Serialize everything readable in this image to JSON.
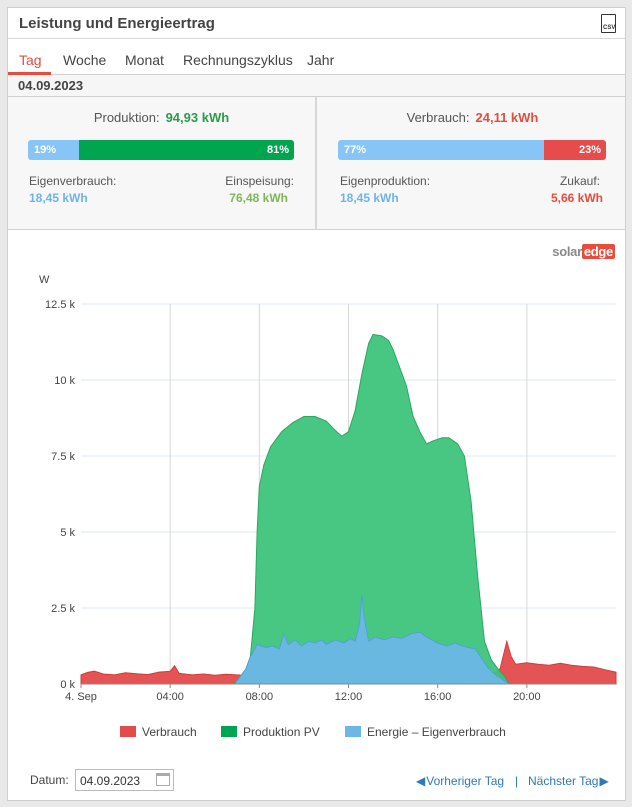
{
  "header": {
    "title": "Leistung und Energieertrag",
    "csv_label": "CSV"
  },
  "tabs": [
    {
      "label": "Tag",
      "active": true
    },
    {
      "label": "Woche",
      "active": false
    },
    {
      "label": "Monat",
      "active": false
    },
    {
      "label": "Rechnungszyklus",
      "active": false
    },
    {
      "label": "Jahr",
      "active": false
    }
  ],
  "date_heading": "04.09.2023",
  "production": {
    "label": "Produktion:",
    "value": "94,93 kWh",
    "left_pct": 19,
    "right_pct": 81,
    "left_pct_label": "19%",
    "right_pct_label": "81%",
    "left_label": "Eigenverbrauch:",
    "left_value": "18,45 kWh",
    "right_label": "Einspeisung:",
    "right_value": "76,48 kWh"
  },
  "consumption": {
    "label": "Verbrauch:",
    "value": "24,11 kWh",
    "left_pct": 77,
    "right_pct": 23,
    "left_pct_label": "77%",
    "right_pct_label": "23%",
    "left_label": "Eigenproduktion:",
    "left_value": "18,45 kWh",
    "right_label": "Zukauf:",
    "right_value": "5,66 kWh"
  },
  "colors": {
    "accent": "#e74c3c",
    "green": "#00a64f",
    "light_blue": "#86c5f5",
    "red": "#e74c4c",
    "green_text": "#2e9b4c",
    "red_text": "#e74c3c",
    "blue_text": "#6fb4e8",
    "light_green_text": "#7cb85a"
  },
  "logo": {
    "part1": "solar",
    "part2": "edge"
  },
  "chart_data": {
    "type": "area",
    "ylabel": "W",
    "ylim": [
      0,
      12500
    ],
    "yticks": [
      0,
      2500,
      5000,
      7500,
      10000,
      12500
    ],
    "ytick_labels": [
      "0 k",
      "2.5 k",
      "5 k",
      "7.5 k",
      "10 k",
      "12.5 k"
    ],
    "xlim": [
      0,
      24
    ],
    "xticks": [
      0,
      4,
      8,
      12,
      16,
      20
    ],
    "xtick_labels": [
      "4. Sep",
      "04:00",
      "08:00",
      "12:00",
      "16:00",
      "20:00"
    ],
    "grid": true,
    "legend_position": "bottom",
    "series": [
      {
        "name": "Verbrauch",
        "color": "#e34b4b",
        "points": [
          [
            0,
            300
          ],
          [
            0.3,
            380
          ],
          [
            0.6,
            420
          ],
          [
            1,
            330
          ],
          [
            1.5,
            300
          ],
          [
            2,
            370
          ],
          [
            2.5,
            340
          ],
          [
            3,
            310
          ],
          [
            3.5,
            390
          ],
          [
            4,
            420
          ],
          [
            4.2,
            600
          ],
          [
            4.4,
            350
          ],
          [
            5,
            300
          ],
          [
            5.5,
            330
          ],
          [
            6,
            290
          ],
          [
            6.5,
            320
          ],
          [
            7,
            300
          ],
          [
            7.5,
            280
          ],
          [
            8,
            280
          ],
          [
            9,
            250
          ],
          [
            10,
            250
          ],
          [
            11,
            250
          ],
          [
            12,
            250
          ],
          [
            13,
            250
          ],
          [
            14,
            250
          ],
          [
            15,
            250
          ],
          [
            16,
            250
          ],
          [
            17,
            250
          ],
          [
            18,
            280
          ],
          [
            18.5,
            330
          ],
          [
            18.8,
            500
          ],
          [
            19.1,
            1400
          ],
          [
            19.3,
            900
          ],
          [
            19.5,
            650
          ],
          [
            20,
            700
          ],
          [
            20.5,
            650
          ],
          [
            21,
            620
          ],
          [
            21.5,
            680
          ],
          [
            22,
            620
          ],
          [
            22.5,
            580
          ],
          [
            23,
            560
          ],
          [
            23.5,
            470
          ],
          [
            24,
            390
          ]
        ]
      },
      {
        "name": "Produktion PV",
        "color": "#3ec47b",
        "points": [
          [
            6.8,
            0
          ],
          [
            7,
            100
          ],
          [
            7.2,
            300
          ],
          [
            7.4,
            500
          ],
          [
            7.6,
            900
          ],
          [
            7.8,
            2500
          ],
          [
            7.9,
            5000
          ],
          [
            8,
            6500
          ],
          [
            8.2,
            7200
          ],
          [
            8.5,
            7800
          ],
          [
            9,
            8300
          ],
          [
            9.5,
            8600
          ],
          [
            10,
            8800
          ],
          [
            10.5,
            8800
          ],
          [
            11,
            8650
          ],
          [
            11.4,
            8350
          ],
          [
            11.7,
            8150
          ],
          [
            12,
            8300
          ],
          [
            12.3,
            9000
          ],
          [
            12.6,
            10200
          ],
          [
            12.9,
            11200
          ],
          [
            13.1,
            11500
          ],
          [
            13.5,
            11450
          ],
          [
            13.8,
            11300
          ],
          [
            14,
            11000
          ],
          [
            14.3,
            10400
          ],
          [
            14.6,
            9800
          ],
          [
            14.9,
            8800
          ],
          [
            15.2,
            8300
          ],
          [
            15.5,
            7900
          ],
          [
            15.8,
            8000
          ],
          [
            16.2,
            8100
          ],
          [
            16.5,
            8100
          ],
          [
            16.9,
            7900
          ],
          [
            17.2,
            7500
          ],
          [
            17.5,
            6000
          ],
          [
            17.8,
            3500
          ],
          [
            18.1,
            1400
          ],
          [
            18.4,
            800
          ],
          [
            18.7,
            500
          ],
          [
            19,
            250
          ],
          [
            19.2,
            0
          ]
        ]
      },
      {
        "name": "Energie – Eigenverbrauch",
        "color": "#6cb7e6",
        "points": [
          [
            6.9,
            0
          ],
          [
            7.1,
            200
          ],
          [
            7.4,
            500
          ],
          [
            7.6,
            900
          ],
          [
            7.9,
            1300
          ],
          [
            8.3,
            1200
          ],
          [
            8.6,
            1250
          ],
          [
            8.9,
            1150
          ],
          [
            9.1,
            1650
          ],
          [
            9.3,
            1300
          ],
          [
            9.6,
            1450
          ],
          [
            9.9,
            1250
          ],
          [
            10.2,
            1400
          ],
          [
            10.5,
            1350
          ],
          [
            10.8,
            1450
          ],
          [
            11,
            1300
          ],
          [
            11.4,
            1450
          ],
          [
            11.8,
            1350
          ],
          [
            12.1,
            1500
          ],
          [
            12.3,
            1400
          ],
          [
            12.5,
            2000
          ],
          [
            12.6,
            2950
          ],
          [
            12.7,
            2200
          ],
          [
            12.9,
            1400
          ],
          [
            13.2,
            1550
          ],
          [
            13.6,
            1450
          ],
          [
            14,
            1550
          ],
          [
            14.4,
            1500
          ],
          [
            14.8,
            1650
          ],
          [
            15.2,
            1700
          ],
          [
            15.5,
            1550
          ],
          [
            16,
            1350
          ],
          [
            16.4,
            1250
          ],
          [
            16.8,
            1350
          ],
          [
            17.1,
            1250
          ],
          [
            17.4,
            1200
          ],
          [
            17.7,
            1150
          ],
          [
            18,
            800
          ],
          [
            18.3,
            500
          ],
          [
            18.6,
            300
          ],
          [
            19,
            100
          ],
          [
            19.2,
            0
          ]
        ]
      }
    ]
  },
  "legend": [
    {
      "label": "Verbrauch",
      "color": "#e34b4b"
    },
    {
      "label": "Produktion PV",
      "color": "#00a64f"
    },
    {
      "label": "Energie – Eigenverbrauch",
      "color": "#6cb7e6"
    }
  ],
  "footer": {
    "date_label": "Datum:",
    "date_value": "04.09.2023",
    "prev_label": "Vorheriger Tag",
    "separator": "|",
    "next_label": "Nächster Tag"
  }
}
